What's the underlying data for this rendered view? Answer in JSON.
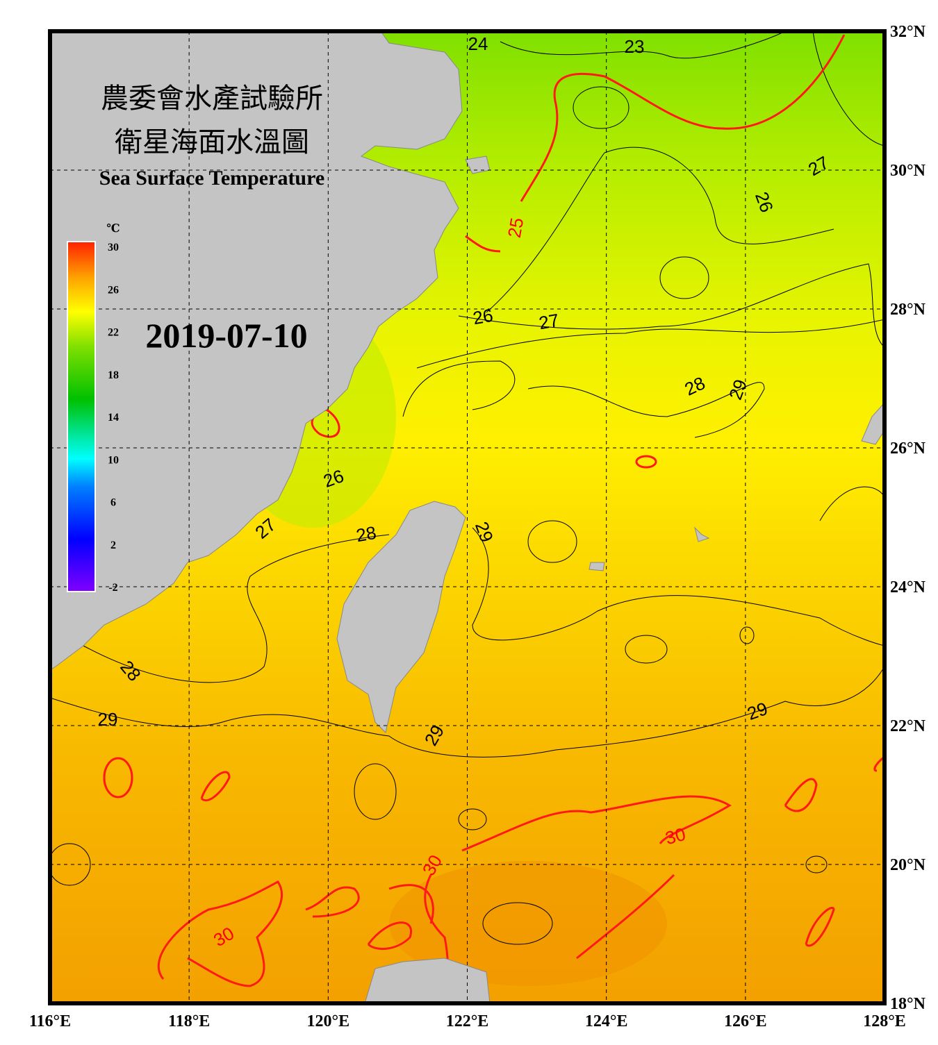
{
  "title": {
    "zh_line1": "農委會水產試驗所",
    "zh_line2": "衛星海面水溫圖",
    "en": "Sea Surface Temperature"
  },
  "date": "2019-07-10",
  "colorbar": {
    "unit": "℃",
    "ticks": [
      30,
      26,
      22,
      18,
      14,
      10,
      6,
      2,
      -2
    ]
  },
  "lon_ticks": [
    {
      "value": 116,
      "label": "116°E"
    },
    {
      "value": 118,
      "label": "118°E"
    },
    {
      "value": 120,
      "label": "120°E"
    },
    {
      "value": 122,
      "label": "122°E"
    },
    {
      "value": 124,
      "label": "124°E"
    },
    {
      "value": 126,
      "label": "126°E"
    },
    {
      "value": 128,
      "label": "128°E"
    }
  ],
  "lat_ticks": [
    {
      "value": 32,
      "label": "32°N"
    },
    {
      "value": 30,
      "label": "30°N"
    },
    {
      "value": 28,
      "label": "28°N"
    },
    {
      "value": 26,
      "label": "26°N"
    },
    {
      "value": 24,
      "label": "24°N"
    },
    {
      "value": 22,
      "label": "22°N"
    },
    {
      "value": 20,
      "label": "20°N"
    },
    {
      "value": 18,
      "label": "18°N"
    }
  ],
  "contour_labels": [
    24,
    23,
    27,
    26,
    25,
    26,
    27,
    28,
    29,
    26,
    27,
    28,
    29,
    28,
    29,
    29,
    29,
    30,
    30,
    30
  ]
}
